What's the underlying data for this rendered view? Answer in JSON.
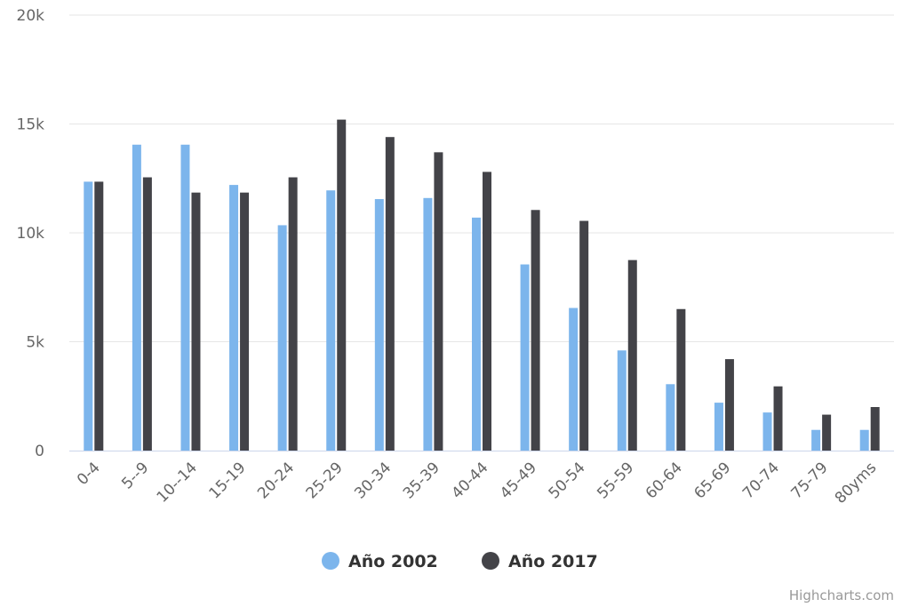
{
  "chart_data": {
    "type": "bar",
    "categories": [
      "0-4",
      "5--9",
      "10--14",
      "15-19",
      "20-24",
      "25-29",
      "30-34",
      "35-39",
      "40-44",
      "45-49",
      "50-54",
      "55-59",
      "60-64",
      "65-69",
      "70-74",
      "75-79",
      "80yms"
    ],
    "series": [
      {
        "name": "Año 2002",
        "color": "#7cb5ec",
        "values": [
          12350,
          14050,
          14050,
          12200,
          10350,
          11950,
          11550,
          11600,
          10700,
          8550,
          6550,
          4600,
          3050,
          2200,
          1750,
          950,
          950
        ]
      },
      {
        "name": "Año 2017",
        "color": "#434348",
        "values": [
          12350,
          12550,
          11850,
          11850,
          12550,
          15200,
          14400,
          13700,
          12800,
          11050,
          10550,
          8750,
          6500,
          4200,
          2950,
          1650,
          2000
        ]
      }
    ],
    "ylim": [
      0,
      20000
    ],
    "yticks": [
      {
        "value": 0,
        "label": "0"
      },
      {
        "value": 5000,
        "label": "5k"
      },
      {
        "value": 10000,
        "label": "10k"
      },
      {
        "value": 15000,
        "label": "15k"
      },
      {
        "value": 20000,
        "label": "20k"
      }
    ],
    "grid": true,
    "legend_position": "bottom-center",
    "credits": "Highcharts.com"
  }
}
